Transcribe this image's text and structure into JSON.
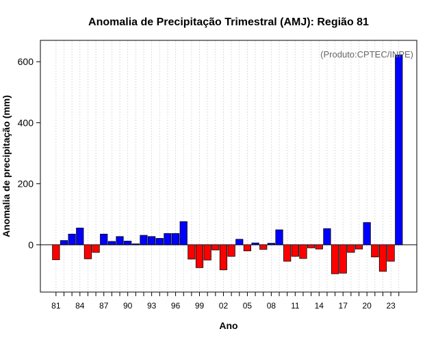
{
  "chart_data": {
    "type": "bar",
    "title": "Anomalia de Precipitação Trimestral (AMJ): Região 81",
    "xlabel": "Ano",
    "ylabel": "Anomalia de precipitação (mm)",
    "credit": "(Produto:CPTEC/INPE)",
    "ylim": [
      -155,
      670
    ],
    "yticks": [
      0,
      200,
      400,
      600
    ],
    "ytick_labels": [
      "0",
      "200",
      "400",
      "600"
    ],
    "xtick_labels": [
      "81",
      "84",
      "87",
      "90",
      "93",
      "96",
      "99",
      "02",
      "05",
      "08",
      "11",
      "14",
      "17",
      "20",
      "23"
    ],
    "xtick_every": 3,
    "grid": true,
    "positive_color": "#0000ff",
    "negative_color": "#ff0000",
    "categories": [
      "1981",
      "1982",
      "1983",
      "1984",
      "1985",
      "1986",
      "1987",
      "1988",
      "1989",
      "1990",
      "1991",
      "1992",
      "1993",
      "1994",
      "1995",
      "1996",
      "1997",
      "1998",
      "1999",
      "2000",
      "2001",
      "2002",
      "2003",
      "2004",
      "2005",
      "2006",
      "2007",
      "2008",
      "2009",
      "2010",
      "2011",
      "2012",
      "2013",
      "2014",
      "2015",
      "2016",
      "2017",
      "2018",
      "2019",
      "2020",
      "2021",
      "2022",
      "2023",
      "2024"
    ],
    "values": [
      -49,
      14,
      35,
      55,
      -46,
      -25,
      35,
      11,
      27,
      12,
      3,
      31,
      27,
      21,
      37,
      37,
      76,
      -47,
      -75,
      -50,
      -17,
      -82,
      -38,
      18,
      -20,
      6,
      -15,
      5,
      49,
      -54,
      -38,
      -45,
      -10,
      -14,
      53,
      -95,
      -93,
      -25,
      -14,
      73,
      -40,
      -87,
      -54,
      622
    ]
  }
}
